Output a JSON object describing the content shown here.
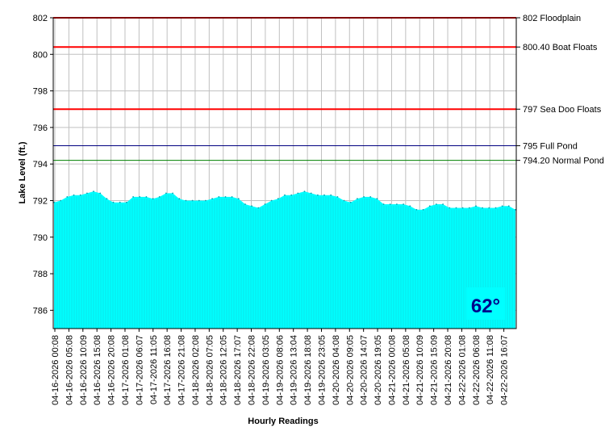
{
  "chart_data": {
    "type": "area",
    "title": "",
    "xlabel": "Hourly Readings",
    "ylabel": "Lake Level (ft.)",
    "ylim": [
      785,
      802
    ],
    "yticks": [
      "786",
      "788",
      "790",
      "792",
      "794",
      "796",
      "798",
      "800",
      "802"
    ],
    "x_tick_labels": [
      "04-16-2026 00:08",
      "04-16-2026 05:08",
      "04-16-2026 10:09",
      "04-16-2026 15:08",
      "04-16-2026 20:08",
      "04-17-2026 01:08",
      "04-17-2026 06:07",
      "04-17-2026 11:05",
      "04-17-2026 16:08",
      "04-17-2026 21:08",
      "04-18-2026 02:08",
      "04-18-2026 07:05",
      "04-18-2026 12:05",
      "04-18-2026 17:07",
      "04-18-2026 22:08",
      "04-19-2026 03:05",
      "04-19-2026 08:06",
      "04-19-2026 13:04",
      "04-19-2026 18:08",
      "04-19-2026 23:05",
      "04-20-2026 04:08",
      "04-20-2026 09:05",
      "04-20-2026 14:07",
      "04-20-2026 19:05",
      "04-21-2026 00:08",
      "04-21-2026 05:08",
      "04-21-2026 10:09",
      "04-21-2026 15:09",
      "04-21-2026 20:08",
      "04-22-2026 01:08",
      "04-22-2026 06:08",
      "04-22-2026 11:08",
      "04-22-2026 16:07"
    ],
    "series": [
      {
        "values": [
          791.9,
          792.0,
          792.2,
          792.3,
          792.3,
          792.4,
          792.5,
          792.4,
          792.1,
          791.9,
          791.9,
          791.9,
          792.2,
          792.2,
          792.2,
          792.1,
          792.2,
          792.4,
          792.4,
          792.1,
          792.0,
          792.0,
          792.0,
          792.0,
          792.1,
          792.2,
          792.2,
          792.2,
          792.1,
          791.8,
          791.7,
          791.6,
          791.8,
          792.0,
          792.1,
          792.3,
          792.3,
          792.4,
          792.5,
          792.4,
          792.3,
          792.3,
          792.3,
          792.2,
          792.0,
          791.9,
          792.1,
          792.2,
          792.2,
          792.1,
          791.8,
          791.8,
          791.8,
          791.8,
          791.7,
          791.5,
          791.5,
          791.7,
          791.8,
          791.8,
          791.6,
          791.6,
          791.6,
          791.6,
          791.7,
          791.6,
          791.6,
          791.6,
          791.7,
          791.7,
          791.5
        ],
        "color": "#00ffff"
      }
    ],
    "reference_lines": [
      {
        "value": 802,
        "label": "802 Floodplain",
        "color": "#ff0000"
      },
      {
        "value": 800.4,
        "label": "800.40 Boat Floats",
        "color": "#ff0000"
      },
      {
        "value": 797,
        "label": "797 Sea Doo Floats",
        "color": "#ff0000"
      },
      {
        "value": 795,
        "label": "795 Full Pond",
        "color": "#000080"
      },
      {
        "value": 794.2,
        "label": "794.20 Normal Pond",
        "color": "#008000"
      }
    ],
    "grid": true,
    "annotation": "62°",
    "annotation_bg": "#00ffff"
  }
}
